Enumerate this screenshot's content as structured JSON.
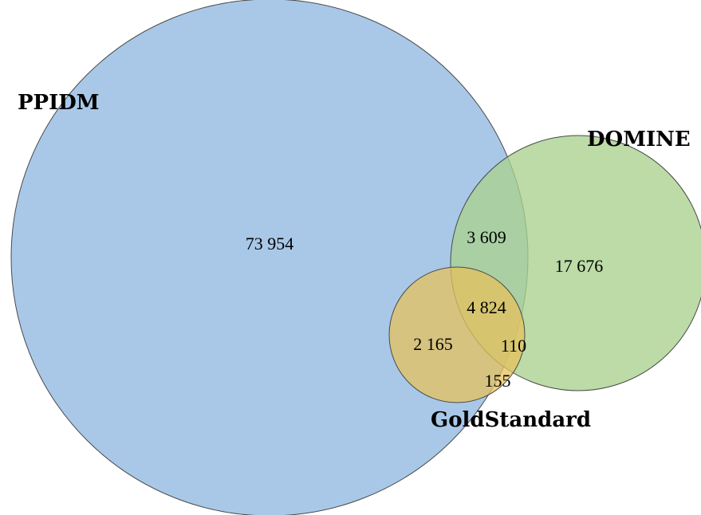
{
  "colors": {
    "ppidm": "#a9c8e8",
    "domine": "#a9d18e",
    "goldstandard": "#e5c25c",
    "stroke": "#4a4a4a"
  },
  "sets": {
    "ppidm": "PPIDM",
    "domine": "DOMINE",
    "goldstandard": "GoldStandard"
  },
  "regions": {
    "ppidm_only": "73 954",
    "ppidm_domine": "3 609",
    "domine_only": "17 676",
    "all_three": "4 824",
    "ppidm_gold": "2 165",
    "domine_gold": "110",
    "gold_only": "155"
  }
}
